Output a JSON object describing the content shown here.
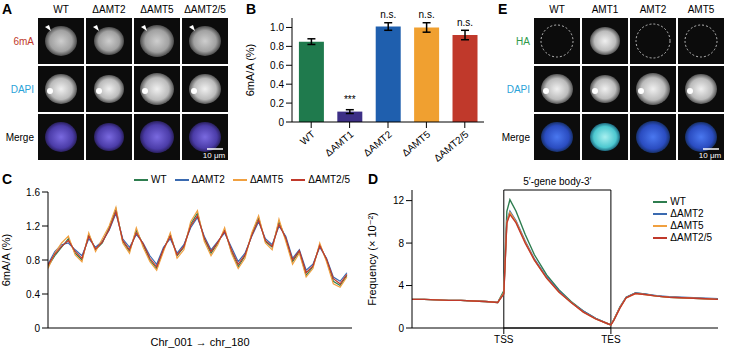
{
  "chart_data": [
    {
      "panel": "B",
      "type": "bar",
      "categories": [
        "WT",
        "ΔAMT1",
        "ΔAMT2",
        "ΔAMT5",
        "ΔAMT2/5"
      ],
      "values": [
        0.85,
        0.11,
        1.01,
        1.0,
        0.92
      ],
      "errors": [
        0.03,
        0.02,
        0.04,
        0.05,
        0.05
      ],
      "significance": [
        null,
        "***",
        "n.s.",
        "n.s.",
        "n.s."
      ],
      "colors": [
        "#1f7a4d",
        "#3d2f86",
        "#1f5fae",
        "#f0a030",
        "#c0392b"
      ],
      "y_label": "6mA/A (%)",
      "ylim": [
        0,
        1.1
      ],
      "yticks": [
        0,
        0.2,
        0.4,
        0.6,
        0.8,
        {
          "value": 1.0,
          "label": "1.0"
        }
      ]
    },
    {
      "panel": "C",
      "type": "line",
      "x": [
        1,
        5,
        9,
        13,
        17,
        21,
        25,
        29,
        33,
        37,
        41,
        45,
        49,
        53,
        57,
        61,
        65,
        69,
        73,
        77,
        81,
        85,
        89,
        93,
        97,
        101,
        105,
        109,
        113,
        117,
        121,
        125,
        129,
        133,
        137,
        141,
        145,
        149,
        153,
        157,
        161,
        165,
        169,
        173,
        177
      ],
      "xlim": [
        1,
        180
      ],
      "x_label": "Chr_001 → chr_180",
      "y_label": "6mA/A (%)",
      "ylim": [
        0,
        1.6
      ],
      "yticks": [
        0,
        0.4,
        0.8,
        1.2,
        1.6
      ],
      "tick_labels": "y",
      "legend": "top",
      "series": [
        {
          "name": "WT",
          "color": "#2e7d4f",
          "values": [
            0.72,
            0.85,
            0.95,
            1.05,
            0.88,
            0.8,
            1.1,
            0.92,
            1.0,
            1.18,
            1.4,
            1.02,
            0.9,
            1.15,
            0.98,
            0.8,
            0.7,
            0.92,
            1.1,
            0.85,
            0.95,
            1.22,
            1.35,
            1.05,
            0.88,
            1.0,
            1.15,
            0.9,
            0.72,
            0.85,
            1.1,
            1.3,
            1.02,
            0.95,
            1.25,
            1.05,
            0.78,
            0.9,
            0.62,
            0.72,
            0.98,
            0.8,
            0.55,
            0.5,
            0.62
          ]
        },
        {
          "name": "ΔAMT2",
          "color": "#3a6ab0",
          "values": [
            0.75,
            0.9,
            0.98,
            1.0,
            0.92,
            0.85,
            1.05,
            0.95,
            1.02,
            1.15,
            1.35,
            1.05,
            0.95,
            1.1,
            1.0,
            0.85,
            0.75,
            0.95,
            1.05,
            0.88,
            0.98,
            1.18,
            1.3,
            1.08,
            0.92,
            1.02,
            1.12,
            0.95,
            0.78,
            0.88,
            1.08,
            1.25,
            1.05,
            0.98,
            1.2,
            1.08,
            0.82,
            0.92,
            0.68,
            0.75,
            0.95,
            0.82,
            0.6,
            0.55,
            0.65
          ]
        },
        {
          "name": "ΔAMT5",
          "color": "#f0a040",
          "values": [
            0.7,
            0.88,
            1.0,
            1.08,
            0.86,
            0.78,
            1.12,
            0.9,
            1.05,
            1.2,
            1.42,
            1.0,
            0.88,
            1.18,
            0.95,
            0.78,
            0.68,
            0.9,
            1.12,
            0.82,
            0.92,
            1.25,
            1.38,
            1.02,
            0.85,
            0.98,
            1.18,
            0.88,
            0.7,
            0.82,
            1.12,
            1.32,
            1.0,
            0.92,
            1.28,
            1.02,
            0.75,
            0.88,
            0.6,
            0.7,
            1.0,
            0.78,
            0.52,
            0.48,
            0.6
          ]
        },
        {
          "name": "ΔAMT2/5",
          "color": "#c0392b",
          "values": [
            0.74,
            0.87,
            0.96,
            1.03,
            0.9,
            0.82,
            1.08,
            0.93,
            1.01,
            1.16,
            1.37,
            1.03,
            0.92,
            1.12,
            0.99,
            0.82,
            0.72,
            0.93,
            1.08,
            0.86,
            0.96,
            1.2,
            1.32,
            1.06,
            0.9,
            1.01,
            1.14,
            0.92,
            0.75,
            0.86,
            1.09,
            1.27,
            1.03,
            0.96,
            1.22,
            1.06,
            0.8,
            0.91,
            0.65,
            0.73,
            0.97,
            0.81,
            0.58,
            0.52,
            0.63
          ]
        }
      ]
    },
    {
      "panel": "D",
      "type": "line",
      "x": [
        0,
        4,
        8,
        12,
        16,
        20,
        24,
        28,
        30,
        31,
        32,
        34,
        37,
        40,
        44,
        48,
        52,
        56,
        60,
        64,
        65,
        66,
        68,
        70,
        73,
        76,
        80,
        84,
        88,
        92,
        96,
        100
      ],
      "xlim": [
        0,
        100
      ],
      "xticks": [
        {
          "value": 30,
          "label": "TSS"
        },
        {
          "value": 65,
          "label": "TES"
        }
      ],
      "y_label": "Frequency (× 10⁻²)",
      "ylim": [
        0,
        13
      ],
      "yticks": [
        0,
        4,
        8,
        12
      ],
      "legend": "top-right",
      "annotations": [
        {
          "text": "5′-gene body-3′",
          "x": [
            30,
            65
          ]
        }
      ],
      "series": [
        {
          "name": "WT",
          "color": "#2e7d4f",
          "values": [
            2.7,
            2.7,
            2.65,
            2.6,
            2.6,
            2.55,
            2.5,
            2.4,
            3.5,
            11.0,
            12.1,
            11.0,
            8.8,
            6.9,
            5.0,
            3.6,
            2.5,
            1.6,
            0.9,
            0.4,
            0.3,
            0.8,
            2.0,
            2.9,
            3.3,
            3.2,
            3.0,
            2.9,
            2.85,
            2.8,
            2.75,
            2.7
          ]
        },
        {
          "name": "ΔAMT2",
          "color": "#3a6ab0",
          "values": [
            2.7,
            2.7,
            2.65,
            2.6,
            2.6,
            2.55,
            2.5,
            2.4,
            3.3,
            10.1,
            11.0,
            10.1,
            8.2,
            6.5,
            4.8,
            3.5,
            2.4,
            1.6,
            0.9,
            0.4,
            0.3,
            0.8,
            2.0,
            2.9,
            3.3,
            3.2,
            3.05,
            2.95,
            2.9,
            2.85,
            2.8,
            2.75
          ]
        },
        {
          "name": "ΔAMT5",
          "color": "#f0a040",
          "values": [
            2.7,
            2.7,
            2.65,
            2.6,
            2.6,
            2.55,
            2.5,
            2.4,
            3.3,
            10.0,
            10.9,
            10.0,
            8.1,
            6.4,
            4.7,
            3.4,
            2.4,
            1.5,
            0.85,
            0.4,
            0.3,
            0.8,
            1.95,
            2.85,
            3.25,
            3.15,
            3.0,
            2.9,
            2.85,
            2.8,
            2.75,
            2.7
          ]
        },
        {
          "name": "ΔAMT2/5",
          "color": "#c0392b",
          "values": [
            2.7,
            2.7,
            2.65,
            2.6,
            2.6,
            2.55,
            2.5,
            2.4,
            3.2,
            9.9,
            10.7,
            9.9,
            8.0,
            6.4,
            4.7,
            3.4,
            2.4,
            1.5,
            0.85,
            0.4,
            0.3,
            0.75,
            1.9,
            2.85,
            3.25,
            3.15,
            3.0,
            2.9,
            2.85,
            2.8,
            2.75,
            2.7
          ]
        }
      ]
    }
  ],
  "images": [
    {
      "panel": "A",
      "columns": [
        "WT",
        "ΔAMT2",
        "ΔAMT5",
        "ΔAMT2/5"
      ],
      "rows": [
        "6mA",
        "DAPI",
        "Merge"
      ],
      "scale_bar": "10 μm"
    },
    {
      "panel": "E",
      "columns": [
        "WT",
        "AMT1",
        "AMT2",
        "AMT5"
      ],
      "rows": [
        "HA",
        "DAPI",
        "Merge"
      ],
      "scale_bar": "10 μm"
    }
  ]
}
